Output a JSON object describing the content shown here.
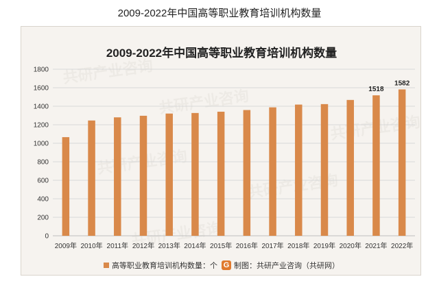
{
  "page_title": "2009-2022年中国高等职业教育培训机构数量",
  "chart_data": {
    "type": "bar",
    "title": "2009-2022年中国高等职业教育培训机构数量",
    "categories": [
      "2009年",
      "2010年",
      "2011年",
      "2012年",
      "2013年",
      "2014年",
      "2015年",
      "2016年",
      "2017年",
      "2018年",
      "2019年",
      "2020年",
      "2021年",
      "2022年"
    ],
    "series": [
      {
        "name": "高等职业教育培训机构数量：个",
        "values": [
          1066,
          1246,
          1280,
          1297,
          1321,
          1327,
          1341,
          1359,
          1388,
          1418,
          1423,
          1468,
          1518,
          1582
        ]
      }
    ],
    "data_labels": [
      "",
      "",
      "",
      "",
      "",
      "",
      "",
      "",
      "",
      "",
      "",
      "",
      "1518",
      "1582"
    ],
    "yticks": [
      "0",
      "200",
      "400",
      "600",
      "800",
      "1000",
      "1200",
      "1400",
      "1600",
      "1800"
    ],
    "ylim": [
      0,
      1800
    ],
    "grid": true,
    "legend_position": "bottom",
    "bar_color": "#d9894a"
  },
  "legend": {
    "series_label": "高等职业教育培训机构数量：个",
    "source_label": "制图：共研产业咨询（共研网）",
    "brand_icon": "gongyan-logo-icon",
    "brand_color": "#e07a2e"
  },
  "watermark_text": "共研产业咨询"
}
